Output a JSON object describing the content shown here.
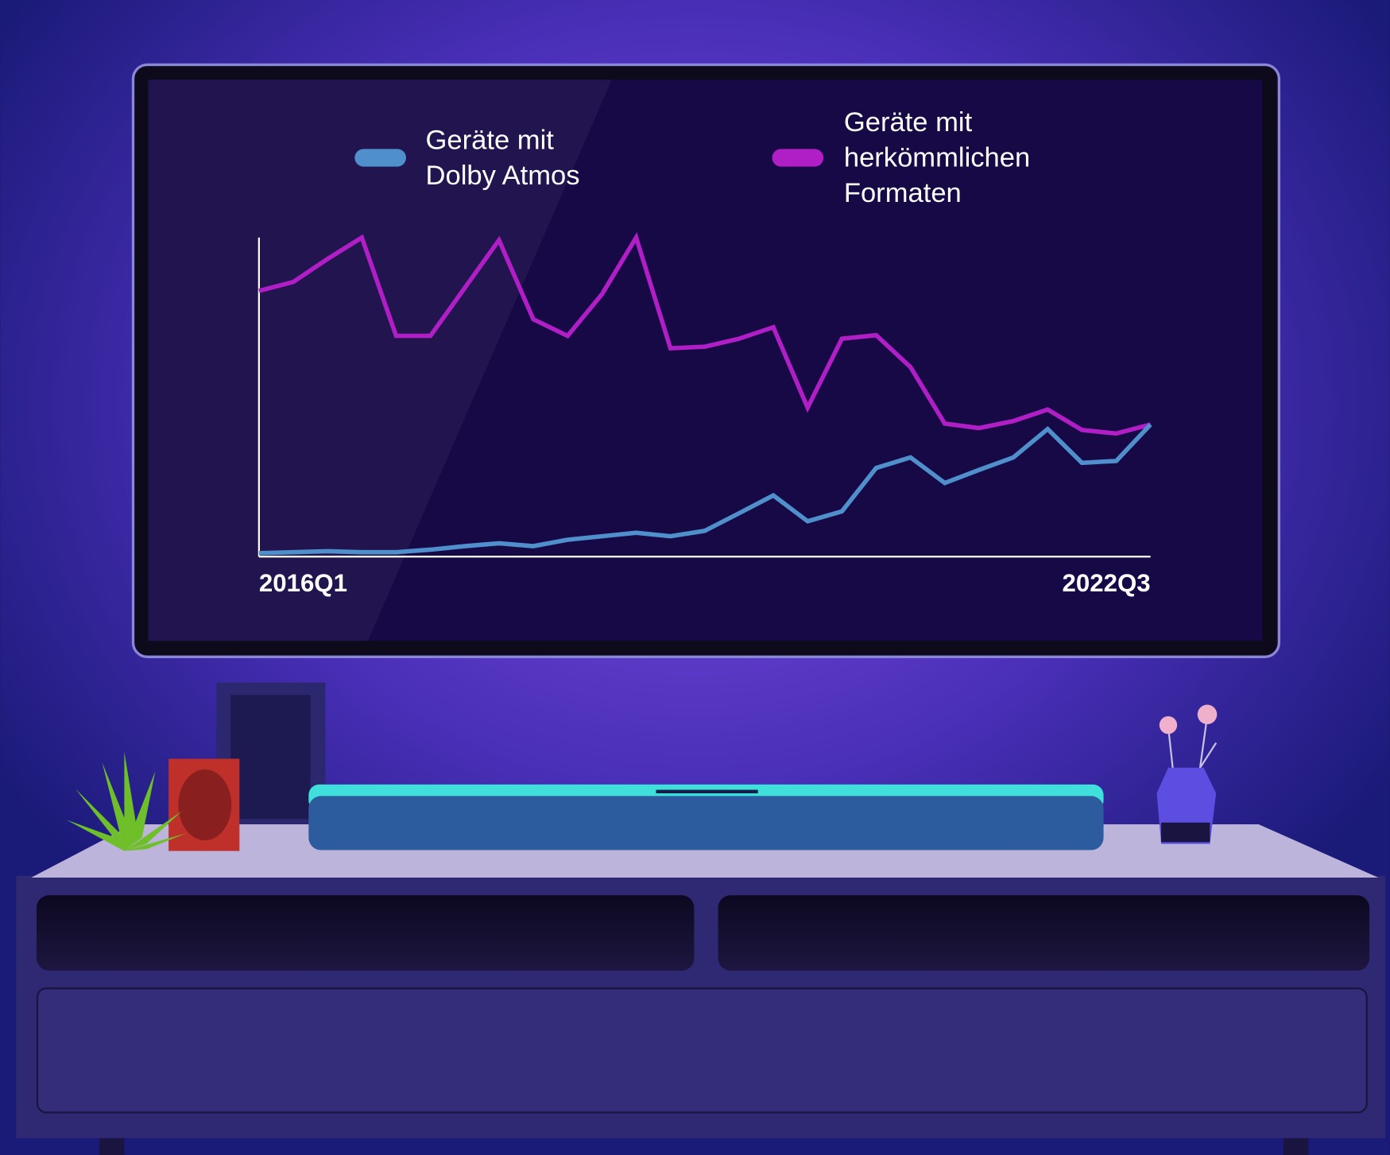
{
  "chart_data": {
    "type": "line",
    "categories": [
      "2016Q1",
      null,
      null,
      null,
      null,
      null,
      null,
      null,
      null,
      null,
      null,
      null,
      null,
      null,
      null,
      null,
      null,
      null,
      null,
      null,
      null,
      null,
      null,
      null,
      null,
      null,
      "2022Q3"
    ],
    "ylim": [
      0,
      100
    ],
    "series": [
      {
        "name": "Geräte mit Dolby Atmos",
        "color": "#4f8fcb",
        "values": [
          1.1,
          1.4,
          1.7,
          1.4,
          1.4,
          2.2,
          3.3,
          4.2,
          3.3,
          5.3,
          6.4,
          7.5,
          6.4,
          8.1,
          13.6,
          19.2,
          11.1,
          14.2,
          27.8,
          31.1,
          23.1,
          27.2,
          31.1,
          40,
          29.4,
          30,
          41.4
        ]
      },
      {
        "name": "Geräte mit herkömmlichen Formaten",
        "color": "#b01ec6",
        "values": [
          83.3,
          86.1,
          93.3,
          100,
          69.2,
          69.2,
          84.2,
          99.2,
          74.4,
          69.2,
          82.2,
          100,
          65.3,
          65.8,
          68.3,
          71.9,
          46.7,
          68.3,
          69.4,
          59.4,
          41.7,
          40.3,
          42.5,
          46.1,
          39.7,
          38.6,
          41.4
        ]
      }
    ]
  }
}
